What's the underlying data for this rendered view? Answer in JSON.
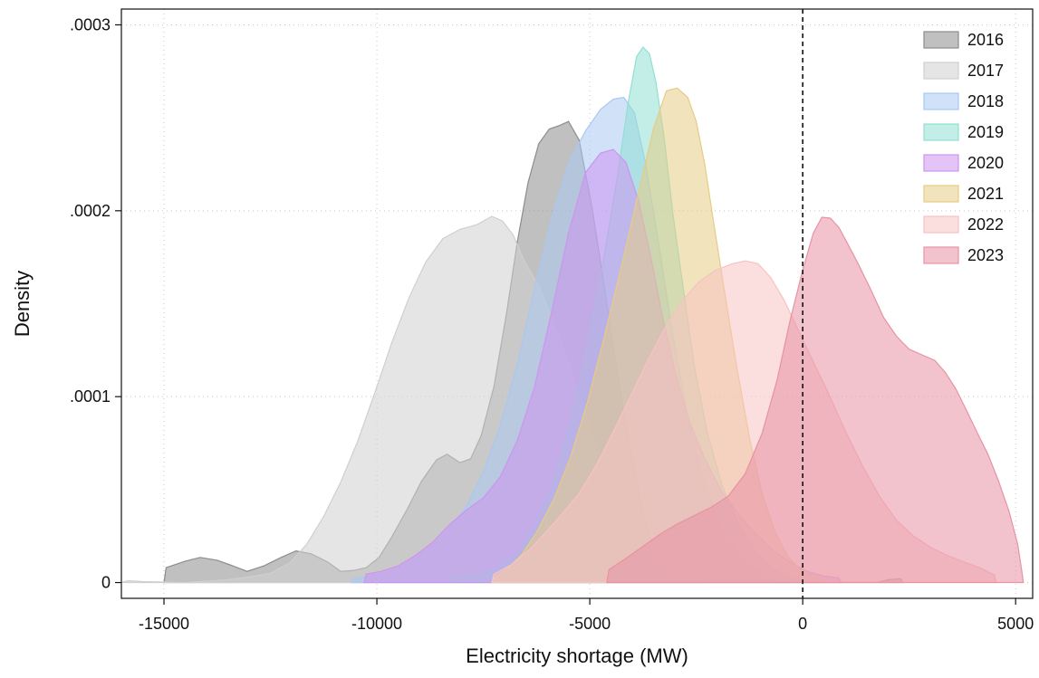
{
  "chart_data": {
    "type": "area",
    "title": "",
    "xlabel": "Electricity shortage (MW)",
    "ylabel": "Density",
    "xlim": [
      -16000,
      5400
    ],
    "ylim": [
      -8.5e-06,
      0.0003085
    ],
    "x_ticks": [
      -15000,
      -10000,
      -5000,
      0,
      5000
    ],
    "x_tick_labels": [
      "-15000",
      "-10000",
      "-5000",
      "0",
      "5000"
    ],
    "y_ticks": [
      0,
      0.0001,
      0.0002,
      0.0003
    ],
    "y_tick_labels": [
      "0",
      ".0001",
      ".0002",
      ".0003"
    ],
    "grid": true,
    "reference_line": {
      "x": 0,
      "style": "dashed"
    },
    "legend_position": "top-right",
    "series": [
      {
        "name": "2016",
        "color": "#8c8c8c",
        "points": [
          [
            -15000,
            0
          ],
          [
            -14950,
            8e-06
          ],
          [
            -14500,
            1.15e-05
          ],
          [
            -14150,
            1.35e-05
          ],
          [
            -13750,
            1.2e-05
          ],
          [
            -13450,
            9.5e-06
          ],
          [
            -13050,
            6e-06
          ],
          [
            -12650,
            9e-06
          ],
          [
            -12250,
            1.35e-05
          ],
          [
            -11900,
            1.7e-05
          ],
          [
            -11550,
            1.55e-05
          ],
          [
            -11150,
            1.1e-05
          ],
          [
            -10850,
            6e-06
          ],
          [
            -10550,
            6.5e-06
          ],
          [
            -10250,
            8e-06
          ],
          [
            -9950,
            1.35e-05
          ],
          [
            -9650,
            2.45e-05
          ],
          [
            -9300,
            3.9e-05
          ],
          [
            -8950,
            5.45e-05
          ],
          [
            -8600,
            6.6e-05
          ],
          [
            -8350,
            6.9e-05
          ],
          [
            -8050,
            6.45e-05
          ],
          [
            -7800,
            6.65e-05
          ],
          [
            -7550,
            7.9e-05
          ],
          [
            -7250,
            0.0001055
          ],
          [
            -6950,
            0.0001455
          ],
          [
            -6700,
            0.0001835
          ],
          [
            -6450,
            0.000215
          ],
          [
            -6200,
            0.000236
          ],
          [
            -5950,
            0.000244
          ],
          [
            -5700,
            0.000246
          ],
          [
            -5500,
            0.000248
          ],
          [
            -5250,
            0.000238
          ],
          [
            -4950,
            0.000202
          ],
          [
            -4650,
            0.000158
          ],
          [
            -4350,
            0.000112
          ],
          [
            -4050,
            7.1e-05
          ],
          [
            -3750,
            3.65e-05
          ],
          [
            -3450,
            1.55e-05
          ],
          [
            -3150,
            4.5e-06
          ],
          [
            -2800,
            1e-06
          ],
          [
            -2400,
            0
          ],
          [
            1750,
            0
          ],
          [
            2000,
            1.5e-06
          ],
          [
            2300,
            2e-06
          ],
          [
            2350,
            0
          ]
        ]
      },
      {
        "name": "2017",
        "color": "#cfcfcf",
        "points": [
          [
            -16000,
            0
          ],
          [
            -15850,
            1e-06
          ],
          [
            -15500,
            5e-07
          ],
          [
            -14500,
            0
          ],
          [
            -13500,
            1.5e-06
          ],
          [
            -13000,
            3e-06
          ],
          [
            -12500,
            5e-06
          ],
          [
            -12050,
            1.05e-05
          ],
          [
            -11650,
            2.05e-05
          ],
          [
            -11250,
            3.55e-05
          ],
          [
            -10850,
            5.4e-05
          ],
          [
            -10450,
            7.6e-05
          ],
          [
            -10050,
            0.000102
          ],
          [
            -9650,
            0.000129
          ],
          [
            -9250,
            0.000153
          ],
          [
            -8850,
            0.0001725
          ],
          [
            -8450,
            0.000185
          ],
          [
            -8050,
            0.00019
          ],
          [
            -7650,
            0.0001925
          ],
          [
            -7300,
            0.000197
          ],
          [
            -7050,
            0.0001945
          ],
          [
            -6800,
            0.000187
          ],
          [
            -6550,
            0.0001735
          ],
          [
            -6150,
            0.0001575
          ],
          [
            -5750,
            0.000134
          ],
          [
            -5350,
            0.0001075
          ],
          [
            -4900,
            7.8e-05
          ],
          [
            -4500,
            5.45e-05
          ],
          [
            -4100,
            3.85e-05
          ],
          [
            -3700,
            2.55e-05
          ],
          [
            -3300,
            1.5e-05
          ],
          [
            -2900,
            7e-06
          ],
          [
            -2550,
            2e-06
          ],
          [
            -2300,
            0
          ]
        ]
      },
      {
        "name": "2018",
        "color": "#a9c8f2",
        "points": [
          [
            -10600,
            0
          ],
          [
            -10550,
            2e-06
          ],
          [
            -10250,
            3e-06
          ],
          [
            -9900,
            4.5e-06
          ],
          [
            -9500,
            7.5e-06
          ],
          [
            -9100,
            1.25e-05
          ],
          [
            -8700,
            1.95e-05
          ],
          [
            -8300,
            2.85e-05
          ],
          [
            -7900,
            4.1e-05
          ],
          [
            -7500,
            5.95e-05
          ],
          [
            -7100,
            8.45e-05
          ],
          [
            -6700,
            0.0001175
          ],
          [
            -6300,
            0.000158
          ],
          [
            -5900,
            0.000196
          ],
          [
            -5500,
            0.0002255
          ],
          [
            -5100,
            0.000243
          ],
          [
            -4750,
            0.0002545
          ],
          [
            -4450,
            0.00026
          ],
          [
            -4200,
            0.000261
          ],
          [
            -3950,
            0.0002525
          ],
          [
            -3700,
            0.0002265
          ],
          [
            -3400,
            0.000185
          ],
          [
            -3050,
            0.000133
          ],
          [
            -2700,
            8.9e-05
          ],
          [
            -2350,
            5.5e-05
          ],
          [
            -1950,
            3.25e-05
          ],
          [
            -1550,
            1.8e-05
          ],
          [
            -1150,
            8.5e-06
          ],
          [
            -800,
            3e-06
          ],
          [
            -500,
            5e-07
          ],
          [
            -300,
            0
          ]
        ]
      },
      {
        "name": "2019",
        "color": "#8fe0d3",
        "points": [
          [
            -8300,
            0
          ],
          [
            -8250,
            2.5e-06
          ],
          [
            -7850,
            3e-06
          ],
          [
            -7500,
            5e-06
          ],
          [
            -7100,
            8.5e-06
          ],
          [
            -6700,
            1.55e-05
          ],
          [
            -6300,
            2.9e-05
          ],
          [
            -5900,
            5.1e-05
          ],
          [
            -5500,
            8.25e-05
          ],
          [
            -5100,
            0.000123
          ],
          [
            -4700,
            0.0001705
          ],
          [
            -4350,
            0.000219
          ],
          [
            -4100,
            0.000258
          ],
          [
            -3900,
            0.000283
          ],
          [
            -3750,
            0.000288
          ],
          [
            -3600,
            0.0002845
          ],
          [
            -3450,
            0.0002695
          ],
          [
            -3250,
            0.0002385
          ],
          [
            -3050,
            0.0001985
          ],
          [
            -2800,
            0.0001575
          ],
          [
            -2550,
            0.000117
          ],
          [
            -2250,
            8.15e-05
          ],
          [
            -1900,
            5.25e-05
          ],
          [
            -1500,
            3.1e-05
          ],
          [
            -1100,
            1.65e-05
          ],
          [
            -700,
            7.5e-06
          ],
          [
            -300,
            2.5e-06
          ],
          [
            0,
            0
          ]
        ]
      },
      {
        "name": "2020",
        "color": "#cd94f0",
        "points": [
          [
            -10300,
            0
          ],
          [
            -10250,
            4.5e-06
          ],
          [
            -9900,
            6e-06
          ],
          [
            -9500,
            9e-06
          ],
          [
            -9100,
            1.45e-05
          ],
          [
            -8700,
            2.15e-05
          ],
          [
            -8300,
            3.1e-05
          ],
          [
            -7900,
            3.9e-05
          ],
          [
            -7500,
            4.55e-05
          ],
          [
            -7100,
            5.7e-05
          ],
          [
            -6700,
            7.65e-05
          ],
          [
            -6300,
            0.000105
          ],
          [
            -5900,
            0.000145
          ],
          [
            -5500,
            0.000188
          ],
          [
            -5100,
            0.0002205
          ],
          [
            -4750,
            0.000231
          ],
          [
            -4450,
            0.000233
          ],
          [
            -4150,
            0.000226
          ],
          [
            -3850,
            0.000205
          ],
          [
            -3550,
            0.000173
          ],
          [
            -3250,
            0.000138
          ],
          [
            -2950,
            0.000109
          ],
          [
            -2650,
            8.6e-05
          ],
          [
            -2300,
            6.65e-05
          ],
          [
            -1900,
            4.9e-05
          ],
          [
            -1500,
            3.65e-05
          ],
          [
            -1100,
            2.6e-05
          ],
          [
            -700,
            1.75e-05
          ],
          [
            -300,
            1.1e-05
          ],
          [
            100,
            6e-06
          ],
          [
            500,
            3.5e-06
          ],
          [
            850,
            2.5e-06
          ],
          [
            900,
            0
          ]
        ]
      },
      {
        "name": "2021",
        "color": "#e6cc85",
        "points": [
          [
            -7300,
            0
          ],
          [
            -7250,
            2.5e-06
          ],
          [
            -6950,
            7e-06
          ],
          [
            -6600,
            1.5e-05
          ],
          [
            -6250,
            2.7e-05
          ],
          [
            -5850,
            4.45e-05
          ],
          [
            -5450,
            6.75e-05
          ],
          [
            -5050,
            9.75e-05
          ],
          [
            -4650,
            0.000133
          ],
          [
            -4250,
            0.000171
          ],
          [
            -3850,
            0.0002105
          ],
          [
            -3500,
            0.0002445
          ],
          [
            -3200,
            0.0002645
          ],
          [
            -2950,
            0.000266
          ],
          [
            -2700,
            0.000261
          ],
          [
            -2500,
            0.000248
          ],
          [
            -2300,
            0.000225
          ],
          [
            -2100,
            0.000195
          ],
          [
            -1850,
            0.0001585
          ],
          [
            -1550,
            0.000116
          ],
          [
            -1250,
            7.8e-05
          ],
          [
            -950,
            4.75e-05
          ],
          [
            -650,
            2.7e-05
          ],
          [
            -350,
            1.4e-05
          ],
          [
            -50,
            7e-06
          ],
          [
            250,
            3e-06
          ],
          [
            500,
            1.5e-06
          ],
          [
            550,
            0
          ]
        ]
      },
      {
        "name": "2022",
        "color": "#f7c2c2",
        "points": [
          [
            -7300,
            0
          ],
          [
            -7250,
            4.5e-06
          ],
          [
            -6850,
            9.5e-06
          ],
          [
            -6450,
            1.7e-05
          ],
          [
            -6050,
            2.65e-05
          ],
          [
            -5650,
            3.7e-05
          ],
          [
            -5250,
            4.8e-05
          ],
          [
            -4850,
            6.3e-05
          ],
          [
            -4450,
            8.1e-05
          ],
          [
            -4050,
            0.0001
          ],
          [
            -3650,
            0.000119
          ],
          [
            -3250,
            0.0001365
          ],
          [
            -2850,
            0.000151
          ],
          [
            -2450,
            0.0001615
          ],
          [
            -2050,
            0.000168
          ],
          [
            -1650,
            0.0001715
          ],
          [
            -1350,
            0.000173
          ],
          [
            -1050,
            0.0001715
          ],
          [
            -750,
            0.000164
          ],
          [
            -450,
            0.0001525
          ],
          [
            -150,
            0.000138
          ],
          [
            200,
            0.000121
          ],
          [
            600,
            0.000102
          ],
          [
            1000,
            8.15e-05
          ],
          [
            1400,
            6.3e-05
          ],
          [
            1800,
            4.65e-05
          ],
          [
            2200,
            3.35e-05
          ],
          [
            2600,
            2.5e-05
          ],
          [
            3000,
            1.9e-05
          ],
          [
            3400,
            1.45e-05
          ],
          [
            3800,
            1.1e-05
          ],
          [
            4200,
            7.5e-06
          ],
          [
            4500,
            4e-06
          ],
          [
            4550,
            0
          ]
        ]
      },
      {
        "name": "2023",
        "color": "#e892a4",
        "points": [
          [
            -4600,
            0
          ],
          [
            -4550,
            7e-06
          ],
          [
            -4150,
            1.3e-05
          ],
          [
            -3750,
            1.95e-05
          ],
          [
            -3350,
            2.6e-05
          ],
          [
            -2950,
            3.15e-05
          ],
          [
            -2550,
            3.6e-05
          ],
          [
            -2150,
            4.05e-05
          ],
          [
            -1750,
            4.65e-05
          ],
          [
            -1350,
            5.85e-05
          ],
          [
            -950,
            8.05e-05
          ],
          [
            -600,
            0.000109
          ],
          [
            -300,
            0.0001405
          ],
          [
            0,
            0.000168
          ],
          [
            250,
            0.000188
          ],
          [
            450,
            0.0001965
          ],
          [
            650,
            0.000196
          ],
          [
            850,
            0.000191
          ],
          [
            1050,
            0.0001825
          ],
          [
            1300,
            0.0001715
          ],
          [
            1600,
            0.0001575
          ],
          [
            1900,
            0.0001425
          ],
          [
            2200,
            0.0001325
          ],
          [
            2500,
            0.0001255
          ],
          [
            2800,
            0.0001225
          ],
          [
            3100,
            0.0001195
          ],
          [
            3350,
            0.000113
          ],
          [
            3600,
            0.000104
          ],
          [
            3850,
            9.25e-05
          ],
          [
            4100,
            8.05e-05
          ],
          [
            4350,
            6.9e-05
          ],
          [
            4600,
            5.45e-05
          ],
          [
            4850,
            3.8e-05
          ],
          [
            5050,
            2.05e-05
          ],
          [
            5150,
            5.5e-06
          ],
          [
            5180,
            0
          ]
        ]
      }
    ]
  }
}
